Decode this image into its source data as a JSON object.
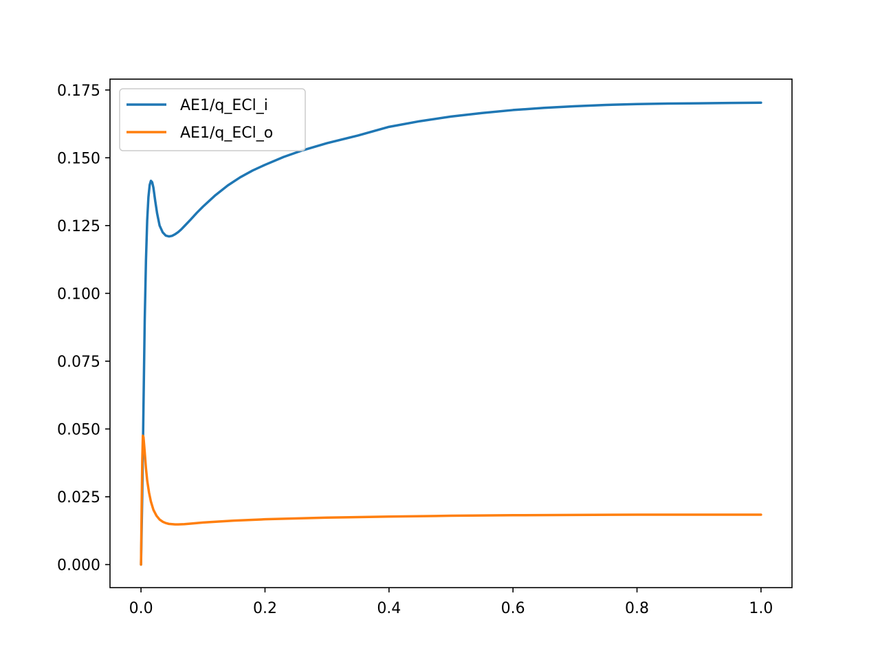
{
  "chart_data": {
    "type": "line",
    "title": "",
    "xlabel": "",
    "ylabel": "",
    "xlim": [
      -0.05,
      1.05
    ],
    "ylim": [
      -0.0085,
      0.179
    ],
    "xticks": [
      0.0,
      0.2,
      0.4,
      0.6,
      0.8,
      1.0
    ],
    "xtick_labels": [
      "0.0",
      "0.2",
      "0.4",
      "0.6",
      "0.8",
      "1.0"
    ],
    "yticks": [
      0.0,
      0.025,
      0.05,
      0.075,
      0.1,
      0.125,
      0.15,
      0.175
    ],
    "ytick_labels": [
      "0.000",
      "0.025",
      "0.050",
      "0.075",
      "0.100",
      "0.125",
      "0.150",
      "0.175"
    ],
    "grid": false,
    "legend_position": "top-left",
    "series": [
      {
        "name": "AE1/q_ECl_i",
        "color": "#1f77b4",
        "x": [
          0.0,
          0.002,
          0.004,
          0.006,
          0.008,
          0.01,
          0.012,
          0.014,
          0.016,
          0.018,
          0.02,
          0.023,
          0.026,
          0.03,
          0.035,
          0.04,
          0.045,
          0.05,
          0.055,
          0.06,
          0.065,
          0.07,
          0.08,
          0.09,
          0.1,
          0.12,
          0.14,
          0.16,
          0.18,
          0.2,
          0.23,
          0.26,
          0.3,
          0.35,
          0.4,
          0.45,
          0.5,
          0.55,
          0.6,
          0.65,
          0.7,
          0.75,
          0.8,
          0.85,
          0.9,
          0.95,
          1.0
        ],
        "y": [
          0.0,
          0.025,
          0.058,
          0.09,
          0.112,
          0.127,
          0.1355,
          0.14,
          0.1415,
          0.141,
          0.139,
          0.134,
          0.1295,
          0.125,
          0.1225,
          0.1213,
          0.121,
          0.1212,
          0.1218,
          0.1226,
          0.1236,
          0.1248,
          0.1272,
          0.1297,
          0.132,
          0.1362,
          0.1398,
          0.1428,
          0.1453,
          0.1474,
          0.1503,
          0.1527,
          0.1554,
          0.1582,
          0.1614,
          0.1635,
          0.1652,
          0.1665,
          0.1676,
          0.1684,
          0.169,
          0.1695,
          0.1698,
          0.17,
          0.1701,
          0.1702,
          0.1703
        ]
      },
      {
        "name": "AE1/q_ECl_o",
        "color": "#ff7f0e",
        "x": [
          0.0,
          0.001,
          0.002,
          0.003,
          0.004,
          0.006,
          0.008,
          0.01,
          0.013,
          0.016,
          0.02,
          0.025,
          0.03,
          0.035,
          0.04,
          0.045,
          0.05,
          0.055,
          0.06,
          0.07,
          0.08,
          0.1,
          0.15,
          0.2,
          0.3,
          0.4,
          0.5,
          0.6,
          0.7,
          0.8,
          0.9,
          1.0
        ],
        "y": [
          0.0,
          0.02,
          0.038,
          0.0475,
          0.047,
          0.0415,
          0.0355,
          0.031,
          0.0265,
          0.0232,
          0.0202,
          0.018,
          0.0166,
          0.0158,
          0.0153,
          0.015,
          0.0149,
          0.0148,
          0.0148,
          0.0149,
          0.0151,
          0.0155,
          0.0162,
          0.0167,
          0.0173,
          0.0177,
          0.018,
          0.0182,
          0.0183,
          0.0184,
          0.0184,
          0.0184
        ]
      }
    ]
  }
}
